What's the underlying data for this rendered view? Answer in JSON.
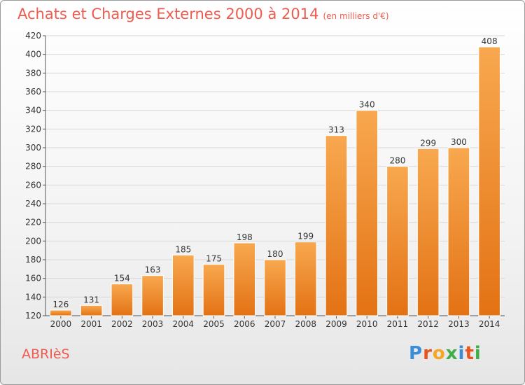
{
  "header": {
    "title": "Achats et Charges Externes 2000 à 2014",
    "unit": "(en milliers d'€)"
  },
  "commune": "ABRIèS",
  "logo": {
    "text": "Proxiti",
    "letters": [
      "P",
      "r",
      "o",
      "x",
      "i",
      "t",
      "i"
    ],
    "colors": [
      "#3a8ed8",
      "#e8531e",
      "#f6a623",
      "#3fae49",
      "#3a8ed8",
      "#e8531e",
      "#3fae49"
    ]
  },
  "colors": {
    "bar_light": "#f8a84f",
    "bar_dark": "#e37214",
    "title": "#ef5b4f",
    "grid": "#d8d8d8"
  },
  "chart_data": {
    "type": "bar",
    "title": "Achats et Charges Externes 2000 à 2014",
    "xlabel": "",
    "ylabel": "(en milliers d'€)",
    "categories": [
      "2000",
      "2001",
      "2002",
      "2003",
      "2004",
      "2005",
      "2006",
      "2007",
      "2008",
      "2009",
      "2010",
      "2011",
      "2012",
      "2013",
      "2014"
    ],
    "values": [
      126,
      131,
      154,
      163,
      185,
      175,
      198,
      180,
      199,
      313,
      340,
      280,
      299,
      300,
      408
    ],
    "ylim": [
      120,
      420
    ],
    "yticks": [
      120,
      140,
      160,
      180,
      200,
      220,
      240,
      260,
      280,
      300,
      320,
      340,
      360,
      380,
      400,
      420
    ],
    "grid": true
  }
}
